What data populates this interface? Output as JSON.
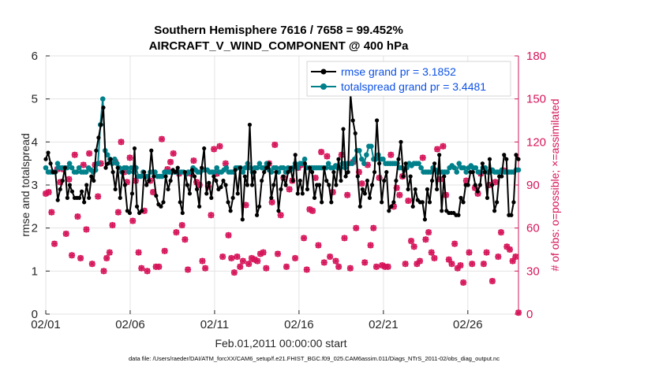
{
  "chart_data": {
    "type": "line",
    "title": "Southern Hemisphere 7616 / 7658 = 99.452%",
    "subtitle": "AIRCRAFT_V_WIND_COMPONENT @ 400 hPa",
    "xlabel": "Feb.01,2011 00:00:00 start",
    "ylabel_left": "rmse and totalspread",
    "ylabel_right": "# of obs: o=possible; ×=assimilated",
    "footnote": "data file: /Users/raeder/DAI/ATM_forcXX/CAM6_setup/f.e21.FHIST_BGC.f09_025.CAM6assim.011/Diags_NTrS_2011-02/obs_diag_output.nc",
    "xlim": [
      0,
      28
    ],
    "ylim_left": [
      0,
      6
    ],
    "ylim_right": [
      0,
      180
    ],
    "x_ticks": [
      0,
      5,
      10,
      15,
      20,
      25
    ],
    "x_tick_labels": [
      "02/01",
      "02/06",
      "02/11",
      "02/16",
      "02/21",
      "02/26"
    ],
    "y_ticks_left": [
      "0",
      "1",
      "2",
      "3",
      "4",
      "5",
      "6"
    ],
    "y_ticks_right": [
      "0",
      "30",
      "60",
      "90",
      "120",
      "150",
      "180"
    ],
    "grid": true,
    "legend_position": "top-right",
    "colors": {
      "rmse": "#000000",
      "spread": "#00808a",
      "obs": "#d6155a",
      "right_axis": "#d6155a",
      "legend_text": "#0b50e6"
    },
    "series": [
      {
        "name": "rmse grand pr = 3.1852",
        "axis": "left",
        "values": [
          3.6,
          3.75,
          3.5,
          3.3,
          3.3,
          2.65,
          2.9,
          3.1,
          3.4,
          2.7,
          3.0,
          2.85,
          2.7,
          2.7,
          2.7,
          2.85,
          2.6,
          3.0,
          2.7,
          3.2,
          3.1,
          3.8,
          4.1,
          4.4,
          4.8,
          3.4,
          3.5,
          3.6,
          3.3,
          2.9,
          3.4,
          2.7,
          3.3,
          3.0,
          2.4,
          2.35,
          2.8,
          3.85,
          2.5,
          2.35,
          2.4,
          3.3,
          3.0,
          3.1,
          3.8,
          3.2,
          2.75,
          2.55,
          2.5,
          2.6,
          3.2,
          2.9,
          3.1,
          3.35,
          3.3,
          3.4,
          2.6,
          2.35,
          3.3,
          3.0,
          2.8,
          3.35,
          3.2,
          2.9,
          2.5,
          3.4,
          3.85,
          2.8,
          3.05,
          2.7,
          3.2,
          3.1,
          2.9,
          2.95,
          3.1,
          3.0,
          2.6,
          2.4,
          2.7,
          3.35,
          2.8,
          3.4,
          2.2,
          3.2,
          3.0,
          4.4,
          3.0,
          3.3,
          2.3,
          2.5,
          3.1,
          3.3,
          3.4,
          3.5,
          2.7,
          3.0,
          3.3,
          2.4,
          2.9,
          3.2,
          3.0,
          3.3,
          3.4,
          3.1,
          3.7,
          2.8,
          3.1,
          2.8,
          3.5,
          2.9,
          3.4,
          3.3,
          2.7,
          3.0,
          3.0,
          2.6,
          3.4,
          3.1,
          3.0,
          2.6,
          3.3,
          3.0,
          3.6,
          3.1,
          4.3,
          3.2,
          3.3,
          5.1,
          4.5,
          4.2,
          3.2,
          2.5,
          2.9,
          2.8,
          3.1,
          2.7,
          3.0,
          3.3,
          4.5,
          3.5,
          2.6,
          3.1,
          3.3,
          2.4,
          2.5,
          2.6,
          3.1,
          3.6,
          4.0,
          3.2,
          3.5,
          2.9,
          3.2,
          2.5,
          2.9,
          2.65,
          2.6,
          2.6,
          2.2,
          2.9,
          2.6,
          3.1,
          3.5,
          2.9,
          3.7,
          2.4,
          3.2,
          2.4,
          2.35,
          2.35,
          2.35,
          2.3,
          2.3,
          2.7,
          2.6,
          3.0,
          3.0,
          3.3,
          3.3,
          3.0,
          2.85,
          3.0,
          3.5,
          3.3,
          2.7,
          3.6,
          3.0,
          2.4,
          2.6,
          3.2,
          3.2,
          3.7,
          3.6,
          2.3,
          2.3,
          2.6,
          3.7,
          3.6
        ]
      },
      {
        "name": "totalspread grand pr = 3.4481",
        "axis": "left",
        "values": [
          3.4,
          3.3,
          3.3,
          3.3,
          3.3,
          3.5,
          3.4,
          3.4,
          3.4,
          3.4,
          3.5,
          3.4,
          3.3,
          3.3,
          3.4,
          3.3,
          3.3,
          3.3,
          3.4,
          3.35,
          3.3,
          3.35,
          3.5,
          4.4,
          5.0,
          3.8,
          3.7,
          3.6,
          3.5,
          3.6,
          3.5,
          3.4,
          3.3,
          3.4,
          3.4,
          3.3,
          3.4,
          3.3,
          3.4,
          3.2,
          3.2,
          3.3,
          3.2,
          3.2,
          3.3,
          3.3,
          3.3,
          3.2,
          3.2,
          3.2,
          3.3,
          3.3,
          3.3,
          3.3,
          3.3,
          3.3,
          3.3,
          3.3,
          3.3,
          3.25,
          3.3,
          3.3,
          3.4,
          3.35,
          3.3,
          3.3,
          3.35,
          3.35,
          3.35,
          3.3,
          3.3,
          3.3,
          3.4,
          3.3,
          3.3,
          3.35,
          3.4,
          3.3,
          3.3,
          3.3,
          3.4,
          3.4,
          3.4,
          3.3,
          3.4,
          3.5,
          3.4,
          3.3,
          3.4,
          3.4,
          3.5,
          3.4,
          3.4,
          3.5,
          3.35,
          3.3,
          3.4,
          3.4,
          3.3,
          3.4,
          3.4,
          3.3,
          3.4,
          3.35,
          3.4,
          3.5,
          3.4,
          3.5,
          3.5,
          3.6,
          3.4,
          3.4,
          3.4,
          3.4,
          3.4,
          3.4,
          3.4,
          3.4,
          3.4,
          3.5,
          3.4,
          3.4,
          3.45,
          3.4,
          3.4,
          3.5,
          3.4,
          3.5,
          3.5,
          3.5,
          3.6,
          3.8,
          3.8,
          3.6,
          3.5,
          3.7,
          3.9,
          3.9,
          3.6,
          3.6,
          3.7,
          3.6,
          3.6,
          3.5,
          3.5,
          3.5,
          3.5,
          3.5,
          3.5,
          3.4,
          3.4,
          3.35,
          3.4,
          3.5,
          3.45,
          3.5,
          3.5,
          3.5,
          3.4,
          3.3,
          3.3,
          3.3,
          3.3,
          3.4,
          3.35,
          3.3,
          3.3,
          3.3,
          3.3,
          3.3,
          3.4,
          3.45,
          3.4,
          3.3,
          3.5,
          3.4,
          3.4,
          3.3,
          3.4,
          3.45,
          3.4,
          3.4,
          3.3,
          3.3,
          3.4,
          3.4,
          3.3,
          3.3,
          3.35,
          3.3,
          3.3,
          3.3,
          3.35,
          3.3,
          3.3,
          3.3,
          3.3,
          3.3,
          3.35,
          3.35
        ]
      },
      {
        "name": "obs possible / assimilated",
        "axis": "right",
        "values": [
          84,
          85,
          71,
          49,
          101,
          92,
          101,
          56,
          94,
          41,
          111,
          68,
          39,
          104,
          59,
          112,
          35,
          104,
          82,
          105,
          30,
          39,
          43,
          62,
          106,
          71,
          120,
          99,
          92,
          109,
          65,
          93,
          43,
          32,
          72,
          30,
          93,
          85,
          33,
          33,
          122,
          44,
          101,
          106,
          112,
          57,
          98,
          62,
          52,
          31,
          98,
          107,
          92,
          90,
          37,
          32,
          89,
          69,
          115,
          98,
          117,
          40,
          105,
          55,
          39,
          29,
          40,
          33,
          37,
          76,
          35,
          39,
          38,
          37,
          42,
          43,
          32,
          105,
          78,
          118,
          42,
          69,
          95,
          33,
          87,
          93,
          39,
          102,
          104,
          53,
          31,
          73,
          72,
          95,
          48,
          113,
          36,
          110,
          40,
          85,
          37,
          33,
          111,
          53,
          83,
          32,
          106,
          60,
          99,
          91,
          36,
          104,
          48,
          60,
          33,
          95,
          34,
          33,
          33,
          111,
          75,
          88,
          83,
          96,
          35,
          79,
          51,
          47,
          35,
          37,
          109,
          52,
          57,
          43,
          39,
          115,
          94,
          117,
          83,
          38,
          35,
          49,
          32,
          34,
          22,
          93,
          43,
          35,
          88,
          84,
          98,
          35,
          43,
          90,
          23,
          92,
          40,
          57,
          100,
          47,
          45,
          37,
          40,
          1
        ]
      }
    ]
  }
}
